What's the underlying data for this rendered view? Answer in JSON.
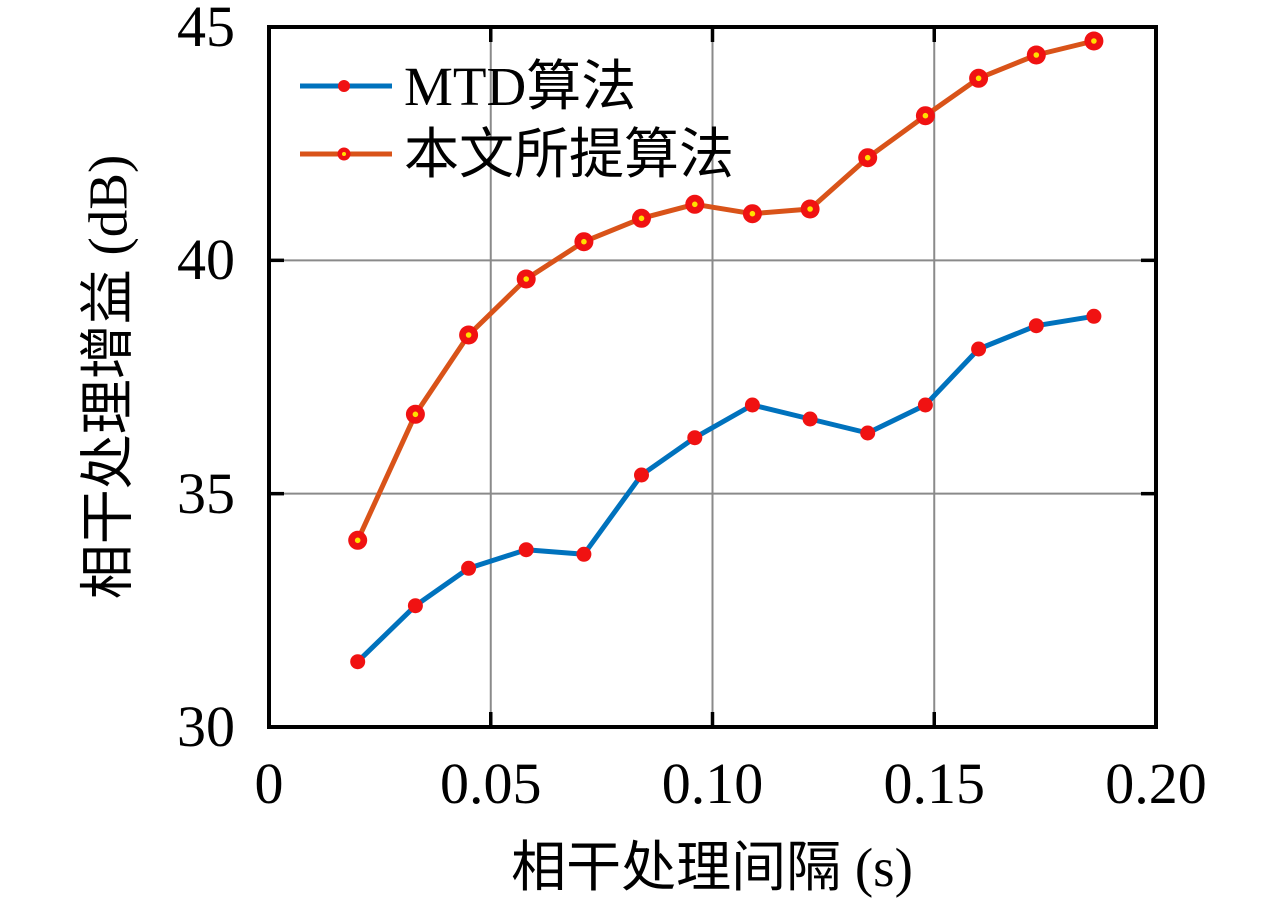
{
  "figure": {
    "background_color": "#ffffff",
    "frame_color": "#000000",
    "grid_color": "#8a8a8a"
  },
  "chart_data": {
    "type": "line",
    "title": "",
    "xlabel": "相干处理间隔 (s)",
    "ylabel": "相干处理增益 (dB)",
    "xlim": [
      0,
      0.2
    ],
    "ylim": [
      30,
      45
    ],
    "grid": true,
    "legend_position": "top-left-inside",
    "legend_frame": false,
    "xticks": {
      "values": [
        0,
        0.05,
        0.1,
        0.15,
        0.2
      ],
      "labels": [
        "0",
        "0.05",
        "0.10",
        "0.15",
        "0.20"
      ]
    },
    "yticks": {
      "values": [
        30,
        35,
        40,
        45
      ],
      "labels": [
        "30",
        "35",
        "40",
        "45"
      ]
    },
    "x": [
      0.02,
      0.033,
      0.045,
      0.058,
      0.071,
      0.084,
      0.096,
      0.109,
      0.122,
      0.135,
      0.148,
      0.16,
      0.173,
      0.186
    ],
    "series": [
      {
        "name": "MTD算法",
        "line_color": "#0072BD",
        "marker": "dot",
        "marker_color": "#F01212",
        "values": [
          31.4,
          32.6,
          33.4,
          33.8,
          33.7,
          35.4,
          36.2,
          36.9,
          36.6,
          36.3,
          36.9,
          38.1,
          38.6,
          38.8
        ]
      },
      {
        "name": "本文所提算法",
        "line_color": "#D95319",
        "marker": "ring-dot",
        "marker_color": "#F01212",
        "marker_center_color": "#FFE000",
        "values": [
          34.0,
          36.7,
          38.4,
          39.6,
          40.4,
          40.9,
          41.2,
          41.0,
          41.1,
          42.2,
          43.1,
          43.9,
          44.4,
          44.7
        ]
      }
    ]
  }
}
